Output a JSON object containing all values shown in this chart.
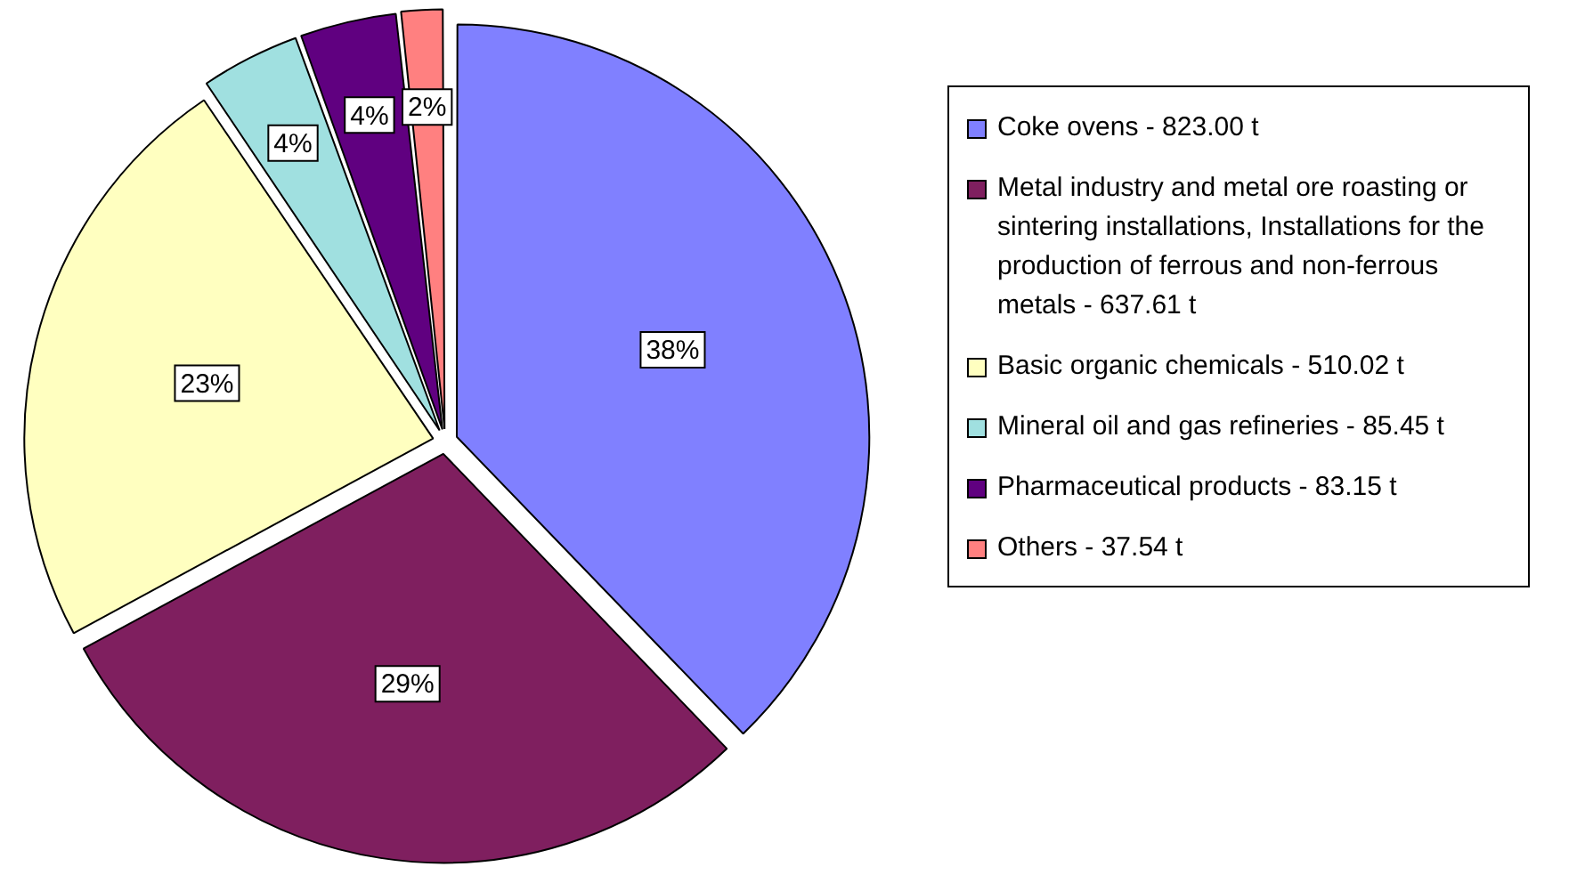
{
  "chart_data": {
    "type": "pie",
    "categories": [
      "Coke ovens - 823.00 t",
      "Metal industry and metal ore roasting or sintering installations, Installations for the production of ferrous and non-ferrous metals - 637.61 t",
      "Basic organic chemicals - 510.02 t",
      "Mineral oil and gas refineries - 85.45 t",
      "Pharmaceutical products - 83.15 t",
      "Others - 37.54 t"
    ],
    "values": [
      37.81,
      29.29,
      23.43,
      3.93,
      3.82,
      1.72
    ],
    "colors": [
      "#8080ff",
      "#7f1f5f",
      "#ffffc0",
      "#a0e0e0",
      "#600080",
      "#ff8080"
    ],
    "value_labels": [
      "38%",
      "29%",
      "23%",
      "4%",
      "4%",
      "2%"
    ],
    "legend": "right"
  }
}
